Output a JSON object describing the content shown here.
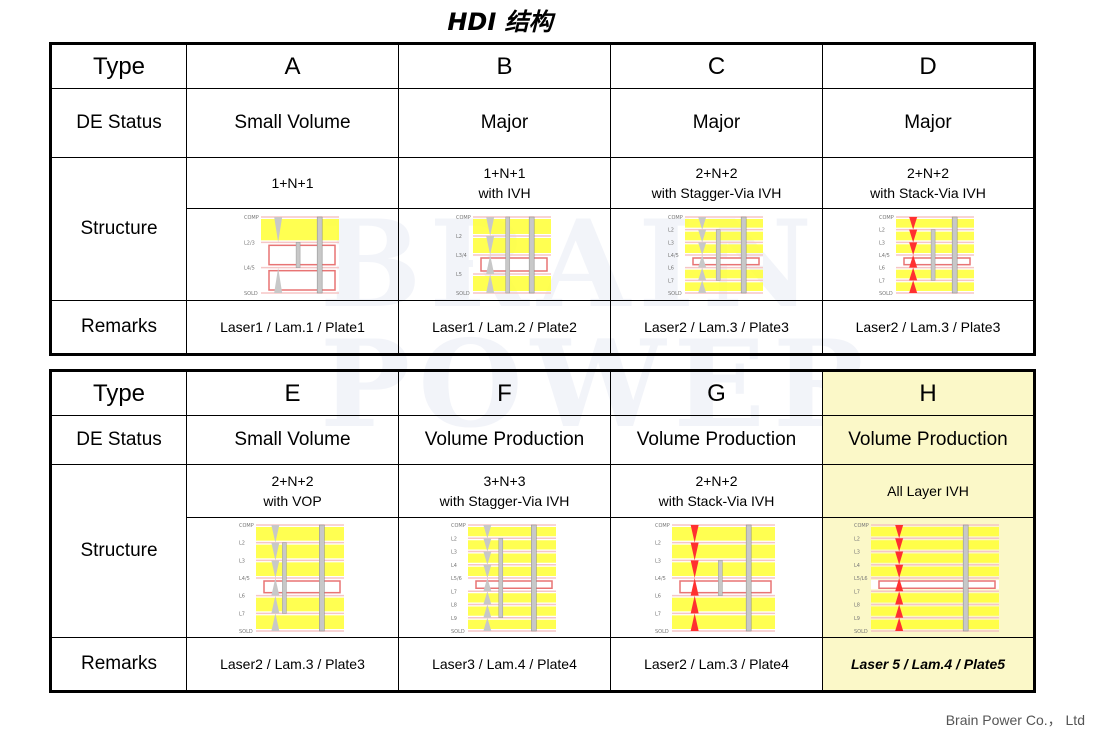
{
  "title": "HDI 结构",
  "watermark": {
    "line1": "BRAIN",
    "line2": "POWER"
  },
  "footer": "Brain Power Co.， Ltd",
  "row_labels": {
    "type": "Type",
    "status": "DE Status",
    "structure": "Structure",
    "remarks": "Remarks"
  },
  "table1": {
    "columns": [
      {
        "type": "A",
        "status": "Small Volume",
        "structure_line1": "1+N+1",
        "structure_line2": "",
        "remarks": "Laser1 / Lam.1 / Plate1"
      },
      {
        "type": "B",
        "status": "Major",
        "structure_line1": "1+N+1",
        "structure_line2": "with IVH",
        "remarks": "Laser1 / Lam.2 / Plate2"
      },
      {
        "type": "C",
        "status": "Major",
        "structure_line1": "2+N+2",
        "structure_line2": "with Stagger-Via IVH",
        "remarks": "Laser2 / Lam.3 / Plate3"
      },
      {
        "type": "D",
        "status": "Major",
        "structure_line1": "2+N+2",
        "structure_line2": "with Stack-Via IVH",
        "remarks": "Laser2 / Lam.3 / Plate3"
      }
    ]
  },
  "table2": {
    "columns": [
      {
        "type": "E",
        "status": "Small Volume",
        "structure_line1": "2+N+2",
        "structure_line2": "with VOP",
        "remarks": "Laser2 / Lam.3 / Plate3"
      },
      {
        "type": "F",
        "status": "Volume Production",
        "structure_line1": "3+N+3",
        "structure_line2": "with Stagger-Via IVH",
        "remarks": "Laser3 / Lam.4 / Plate4"
      },
      {
        "type": "G",
        "status": "Volume Production",
        "structure_line1": "2+N+2",
        "structure_line2": "with Stack-Via IVH",
        "remarks": "Laser2 / Lam.3 / Plate4"
      },
      {
        "type": "H",
        "status": "Volume Production",
        "structure_line1": "All Layer IVH",
        "structure_line2": "",
        "remarks": "Laser 5 / Lam.4 / Plate5"
      }
    ]
  },
  "diagram_labels": {
    "A": [
      "COMP",
      "L2/3",
      "L4/5",
      "SOLD"
    ],
    "B": [
      "COMP",
      "L2",
      "L3/4",
      "L5",
      "SOLD"
    ],
    "C": [
      "COMP",
      "L2",
      "L3",
      "L4/5",
      "L6",
      "L7",
      "SOLD"
    ],
    "D": [
      "COMP",
      "L2",
      "L3",
      "L4/5",
      "L6",
      "L7",
      "SOLD"
    ],
    "E": [
      "COMP",
      "L2",
      "L3",
      "L4/5",
      "L6",
      "L7",
      "SOLD"
    ],
    "F": [
      "COMP",
      "L2",
      "L3",
      "L4",
      "L5/6",
      "L7",
      "L8",
      "L9",
      "SOLD"
    ],
    "G": [
      "COMP",
      "L2",
      "L3",
      "L4/5",
      "L6",
      "L7",
      "SOLD"
    ],
    "H": [
      "COMP",
      "L2",
      "L3",
      "L4",
      "L5/L6",
      "L7",
      "L8",
      "L9",
      "SOLD"
    ]
  },
  "colors": {
    "copper": "#f5c6c6",
    "core": "#e87474",
    "prepreg": "#ffff33",
    "via": "#c8c8c8",
    "laser_via_red": "#ff3030",
    "highlight": "#fbf8c8"
  }
}
